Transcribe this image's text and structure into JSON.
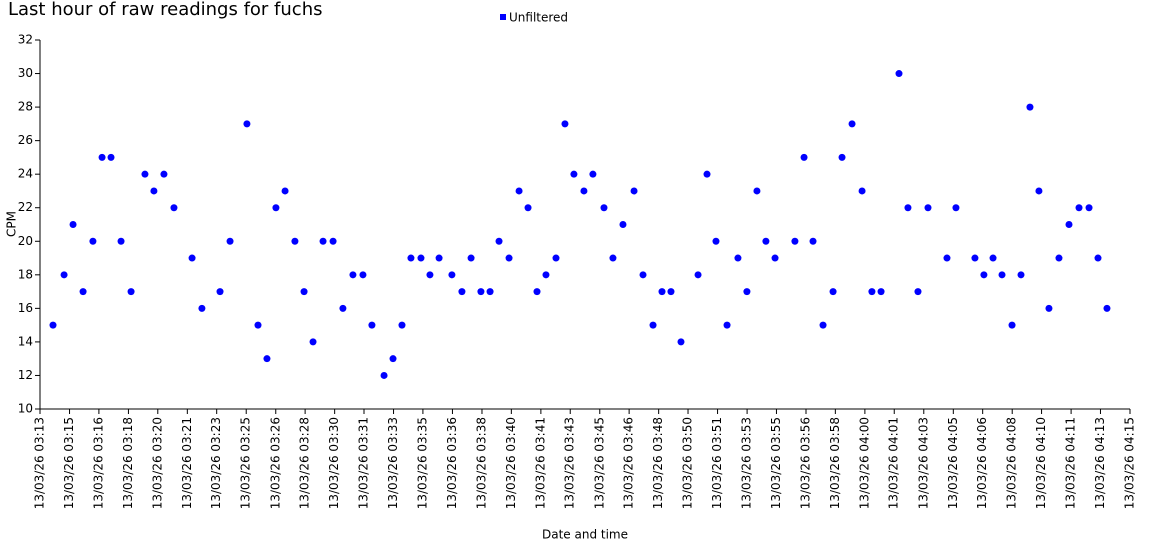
{
  "chart_data": {
    "type": "scatter",
    "title": "Last hour of raw readings for fuchs",
    "x_label": "Date and time",
    "y_label": "CPM",
    "legend": "top",
    "grid": false,
    "xlim": [
      193,
      255
    ],
    "ylim": [
      10,
      32
    ],
    "yticks": [
      10,
      12,
      14,
      16,
      18,
      20,
      22,
      24,
      26,
      28,
      30,
      32
    ],
    "xticks": [
      {
        "value": 193,
        "label": "13/03/26 03:13"
      },
      {
        "value": 194.68,
        "label": "13/03/26 03:15"
      },
      {
        "value": 196.35,
        "label": "13/03/26 03:16"
      },
      {
        "value": 198.03,
        "label": "13/03/26 03:18"
      },
      {
        "value": 199.7,
        "label": "13/03/26 03:20"
      },
      {
        "value": 201.38,
        "label": "13/03/26 03:21"
      },
      {
        "value": 203.05,
        "label": "13/03/26 03:23"
      },
      {
        "value": 204.73,
        "label": "13/03/26 03:25"
      },
      {
        "value": 206.41,
        "label": "13/03/26 03:26"
      },
      {
        "value": 208.08,
        "label": "13/03/26 03:28"
      },
      {
        "value": 209.76,
        "label": "13/03/26 03:30"
      },
      {
        "value": 211.43,
        "label": "13/03/26 03:31"
      },
      {
        "value": 213.11,
        "label": "13/03/26 03:33"
      },
      {
        "value": 214.78,
        "label": "13/03/26 03:35"
      },
      {
        "value": 216.46,
        "label": "13/03/26 03:36"
      },
      {
        "value": 218.14,
        "label": "13/03/26 03:38"
      },
      {
        "value": 219.81,
        "label": "13/03/26 03:40"
      },
      {
        "value": 221.49,
        "label": "13/03/26 03:41"
      },
      {
        "value": 223.16,
        "label": "13/03/26 03:43"
      },
      {
        "value": 224.84,
        "label": "13/03/26 03:45"
      },
      {
        "value": 226.51,
        "label": "13/03/26 03:46"
      },
      {
        "value": 228.19,
        "label": "13/03/26 03:48"
      },
      {
        "value": 229.86,
        "label": "13/03/26 03:50"
      },
      {
        "value": 231.54,
        "label": "13/03/26 03:51"
      },
      {
        "value": 233.22,
        "label": "13/03/26 03:53"
      },
      {
        "value": 234.89,
        "label": "13/03/26 03:55"
      },
      {
        "value": 236.57,
        "label": "13/03/26 03:56"
      },
      {
        "value": 238.24,
        "label": "13/03/26 03:58"
      },
      {
        "value": 239.92,
        "label": "13/03/26 04:00"
      },
      {
        "value": 241.59,
        "label": "13/03/26 04:01"
      },
      {
        "value": 243.27,
        "label": "13/03/26 04:03"
      },
      {
        "value": 244.95,
        "label": "13/03/26 04:05"
      },
      {
        "value": 246.62,
        "label": "13/03/26 04:06"
      },
      {
        "value": 248.3,
        "label": "13/03/26 04:08"
      },
      {
        "value": 249.97,
        "label": "13/03/26 04:10"
      },
      {
        "value": 251.65,
        "label": "13/03/26 04:11"
      },
      {
        "value": 253.32,
        "label": "13/03/26 04:13"
      },
      {
        "value": 255,
        "label": "13/03/26 04:15"
      }
    ],
    "x": [
      193.74,
      194.37,
      194.88,
      195.45,
      196.01,
      196.53,
      197.04,
      197.61,
      198.18,
      198.97,
      199.48,
      200.05,
      200.62,
      201.65,
      202.21,
      203.24,
      203.81,
      204.77,
      205.4,
      205.91,
      206.42,
      206.94,
      207.5,
      208.02,
      208.53,
      209.1,
      209.67,
      210.23,
      210.8,
      211.37,
      211.88,
      212.57,
      213.08,
      213.59,
      214.1,
      214.67,
      215.18,
      215.7,
      216.43,
      217.0,
      217.52,
      218.08,
      218.6,
      219.11,
      219.68,
      220.25,
      220.76,
      221.27,
      221.78,
      222.35,
      222.86,
      223.37,
      223.94,
      224.45,
      225.08,
      225.59,
      226.16,
      226.79,
      227.3,
      227.87,
      228.38,
      228.89,
      229.46,
      230.43,
      230.94,
      231.45,
      232.08,
      232.7,
      233.21,
      233.78,
      234.29,
      234.81,
      235.94,
      236.46,
      236.97,
      237.54,
      238.11,
      238.62,
      239.19,
      239.76,
      240.32,
      240.84,
      241.86,
      242.37,
      242.94,
      243.51,
      244.59,
      245.1,
      246.18,
      246.69,
      247.21,
      247.72,
      248.29,
      248.8,
      249.31,
      249.82,
      250.39,
      250.96,
      251.53,
      252.1,
      252.67,
      253.18,
      253.69
    ],
    "series": [
      {
        "name": "Unfiltered",
        "color": "#0000ff",
        "values": [
          15,
          18,
          21,
          17,
          20,
          25,
          25,
          20,
          17,
          24,
          23,
          24,
          22,
          19,
          16,
          17,
          20,
          27,
          15,
          13,
          22,
          23,
          20,
          17,
          14,
          20,
          20,
          16,
          18,
          18,
          15,
          12,
          13,
          15,
          19,
          19,
          18,
          19,
          18,
          17,
          19,
          17,
          17,
          20,
          19,
          23,
          22,
          17,
          18,
          19,
          27,
          24,
          23,
          24,
          22,
          19,
          21,
          23,
          18,
          15,
          17,
          17,
          14,
          18,
          24,
          20,
          15,
          19,
          17,
          23,
          20,
          19,
          20,
          25,
          20,
          15,
          17,
          25,
          27,
          23,
          17,
          17,
          30,
          22,
          17,
          22,
          19,
          22,
          19,
          18,
          19,
          18,
          15,
          18,
          28,
          23,
          16,
          19,
          21,
          22,
          22,
          19,
          16
        ]
      }
    ]
  }
}
